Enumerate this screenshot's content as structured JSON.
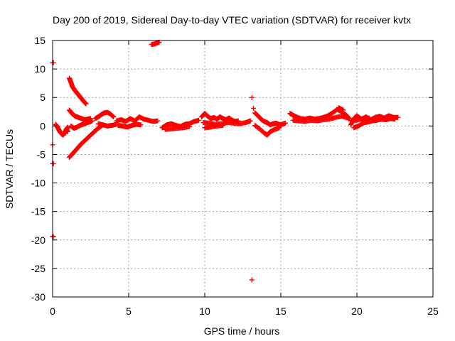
{
  "chart_data": {
    "type": "scatter",
    "title": "Day 200 of 2019, Sidereal Day-to-day VTEC variation (SDTVAR) for receiver kvtx",
    "xlabel": "GPS time / hours",
    "ylabel": "SDTVAR / TECUs",
    "xlim": [
      0,
      25
    ],
    "ylim": [
      -30,
      15
    ],
    "xticks": [
      0,
      5,
      10,
      15,
      20,
      25
    ],
    "yticks": [
      15,
      10,
      5,
      0,
      -5,
      -10,
      -15,
      -20,
      -25,
      -30
    ],
    "grid": true,
    "marker": "+",
    "color": "#ff0000",
    "series": [
      {
        "name": "SDTVAR",
        "points": [
          [
            0.0,
            11.1
          ],
          [
            0.05,
            11.1
          ],
          [
            0.0,
            -3.3
          ],
          [
            0.0,
            -6.6
          ],
          [
            0.05,
            -6.6
          ],
          [
            0.0,
            -19.4
          ],
          [
            0.05,
            -19.4
          ],
          [
            0.2,
            0.3
          ],
          [
            0.3,
            -0.1
          ],
          [
            0.4,
            -0.6
          ],
          [
            0.5,
            -1.1
          ],
          [
            0.6,
            -1.4
          ],
          [
            0.7,
            -1.6
          ],
          [
            0.8,
            -1.1
          ],
          [
            0.9,
            -0.6
          ],
          [
            1.0,
            -0.2
          ],
          [
            0.9,
            -0.6
          ],
          [
            1.0,
            -1.0
          ],
          [
            1.1,
            8.4
          ],
          [
            1.2,
            7.7
          ],
          [
            1.3,
            6.9
          ],
          [
            1.45,
            6.3
          ],
          [
            1.6,
            5.8
          ],
          [
            1.75,
            5.3
          ],
          [
            1.9,
            4.8
          ],
          [
            2.05,
            4.3
          ],
          [
            2.2,
            3.9
          ],
          [
            1.1,
            2.8
          ],
          [
            1.3,
            2.1
          ],
          [
            1.5,
            1.7
          ],
          [
            1.7,
            1.5
          ],
          [
            1.9,
            1.3
          ],
          [
            2.1,
            1.1
          ],
          [
            2.3,
            1.2
          ],
          [
            2.5,
            1.3
          ],
          [
            1.2,
            0.0
          ],
          [
            1.4,
            -0.4
          ],
          [
            1.6,
            -0.2
          ],
          [
            1.8,
            0.1
          ],
          [
            2.0,
            0.3
          ],
          [
            2.2,
            0.5
          ],
          [
            2.4,
            0.7
          ],
          [
            2.6,
            0.9
          ],
          [
            1.1,
            -5.5
          ],
          [
            1.3,
            -4.9
          ],
          [
            1.5,
            -4.3
          ],
          [
            1.7,
            -3.7
          ],
          [
            1.9,
            -3.1
          ],
          [
            2.1,
            -2.6
          ],
          [
            2.3,
            -2.1
          ],
          [
            2.5,
            -1.6
          ],
          [
            2.7,
            -1.1
          ],
          [
            2.9,
            -0.6
          ],
          [
            3.1,
            -0.2
          ],
          [
            3.3,
            0.2
          ],
          [
            2.8,
            1.3
          ],
          [
            3.0,
            1.6
          ],
          [
            3.2,
            2.0
          ],
          [
            3.4,
            2.3
          ],
          [
            3.6,
            2.4
          ],
          [
            3.8,
            2.1
          ],
          [
            4.0,
            1.6
          ],
          [
            3.0,
            0.4
          ],
          [
            3.3,
            0.2
          ],
          [
            3.6,
            0.0
          ],
          [
            3.9,
            0.1
          ],
          [
            4.2,
            0.3
          ],
          [
            4.2,
            0.9
          ],
          [
            4.5,
            1.1
          ],
          [
            4.8,
            0.8
          ],
          [
            5.1,
            1.3
          ],
          [
            5.4,
            0.9
          ],
          [
            5.7,
            1.6
          ],
          [
            6.0,
            1.2
          ],
          [
            6.3,
            1.0
          ],
          [
            6.6,
            0.8
          ],
          [
            6.9,
            0.9
          ],
          [
            4.3,
            0.1
          ],
          [
            4.6,
            0.0
          ],
          [
            4.9,
            -0.2
          ],
          [
            5.2,
            0.1
          ],
          [
            5.5,
            0.3
          ],
          [
            5.8,
            0.2
          ],
          [
            6.5,
            14.3
          ],
          [
            6.7,
            14.4
          ],
          [
            6.9,
            14.6
          ],
          [
            7.0,
            14.7
          ],
          [
            7.2,
            -0.3
          ],
          [
            7.5,
            0.2
          ],
          [
            7.8,
            0.4
          ],
          [
            8.1,
            0.1
          ],
          [
            8.4,
            -0.1
          ],
          [
            8.7,
            0.3
          ],
          [
            9.0,
            0.4
          ],
          [
            9.3,
            0.8
          ],
          [
            9.6,
            1.0
          ],
          [
            7.4,
            -0.6
          ],
          [
            7.8,
            -0.5
          ],
          [
            8.2,
            -0.4
          ],
          [
            8.6,
            -0.3
          ],
          [
            9.0,
            -0.1
          ],
          [
            9.8,
            1.6
          ],
          [
            10.0,
            2.2
          ],
          [
            10.2,
            1.7
          ],
          [
            10.4,
            1.3
          ],
          [
            10.6,
            1.5
          ],
          [
            10.8,
            1.2
          ],
          [
            11.0,
            1.6
          ],
          [
            11.2,
            1.3
          ],
          [
            11.4,
            1.1
          ],
          [
            11.6,
            1.4
          ],
          [
            11.8,
            1.0
          ],
          [
            12.0,
            0.8
          ],
          [
            12.2,
            0.9
          ],
          [
            9.9,
            0.6
          ],
          [
            10.3,
            0.5
          ],
          [
            10.7,
            0.3
          ],
          [
            11.1,
            0.4
          ],
          [
            11.5,
            0.6
          ],
          [
            11.9,
            0.5
          ],
          [
            12.3,
            0.4
          ],
          [
            12.7,
            0.6
          ],
          [
            13.0,
            0.9
          ],
          [
            10.0,
            -0.3
          ],
          [
            10.4,
            -0.2
          ],
          [
            10.8,
            0.0
          ],
          [
            11.2,
            0.1
          ],
          [
            13.1,
            5.0
          ],
          [
            13.2,
            3.1
          ],
          [
            13.1,
            -27.0
          ],
          [
            13.3,
            2.3
          ],
          [
            13.5,
            1.8
          ],
          [
            13.7,
            1.2
          ],
          [
            13.9,
            0.8
          ],
          [
            14.1,
            0.6
          ],
          [
            14.3,
            0.2
          ],
          [
            14.5,
            0.4
          ],
          [
            14.7,
            0.5
          ],
          [
            14.9,
            0.2
          ],
          [
            15.1,
            0.3
          ],
          [
            15.3,
            0.5
          ],
          [
            13.3,
            0.1
          ],
          [
            13.6,
            -0.5
          ],
          [
            13.9,
            -1.2
          ],
          [
            14.1,
            -1.6
          ],
          [
            14.3,
            -1.0
          ],
          [
            14.6,
            -0.6
          ],
          [
            14.9,
            -0.3
          ],
          [
            15.6,
            2.2
          ],
          [
            15.8,
            1.9
          ],
          [
            16.0,
            1.6
          ],
          [
            16.3,
            1.3
          ],
          [
            16.6,
            1.2
          ],
          [
            16.9,
            1.4
          ],
          [
            17.2,
            1.2
          ],
          [
            17.5,
            1.3
          ],
          [
            17.8,
            1.5
          ],
          [
            18.1,
            1.8
          ],
          [
            18.4,
            2.3
          ],
          [
            18.7,
            2.9
          ],
          [
            19.0,
            2.5
          ],
          [
            19.3,
            1.9
          ],
          [
            19.5,
            1.3
          ],
          [
            15.8,
            1.0
          ],
          [
            16.2,
            0.9
          ],
          [
            16.6,
            0.8
          ],
          [
            17.0,
            1.0
          ],
          [
            17.4,
            0.9
          ],
          [
            17.8,
            1.1
          ],
          [
            18.2,
            1.2
          ],
          [
            18.6,
            1.5
          ],
          [
            19.0,
            1.7
          ],
          [
            19.4,
            1.4
          ],
          [
            18.8,
            3.2
          ],
          [
            19.1,
            2.8
          ],
          [
            19.6,
            0.2
          ],
          [
            19.8,
            1.3
          ],
          [
            20.0,
            1.8
          ],
          [
            20.3,
            1.2
          ],
          [
            20.6,
            1.6
          ],
          [
            20.9,
            1.1
          ],
          [
            21.2,
            1.5
          ],
          [
            21.5,
            1.7
          ],
          [
            21.8,
            1.4
          ],
          [
            22.1,
            1.8
          ],
          [
            22.4,
            1.5
          ],
          [
            22.7,
            1.5
          ],
          [
            19.8,
            -0.3
          ],
          [
            20.1,
            0.0
          ],
          [
            20.4,
            0.5
          ],
          [
            20.7,
            0.7
          ],
          [
            21.0,
            0.9
          ],
          [
            21.3,
            1.0
          ],
          [
            21.6,
            1.2
          ],
          [
            21.9,
            1.1
          ],
          [
            22.2,
            1.3
          ],
          [
            22.5,
            1.2
          ],
          [
            19.6,
            0.9
          ],
          [
            20.0,
            1.0
          ],
          [
            20.4,
            1.3
          ],
          [
            20.8,
            1.4
          ]
        ]
      }
    ]
  }
}
